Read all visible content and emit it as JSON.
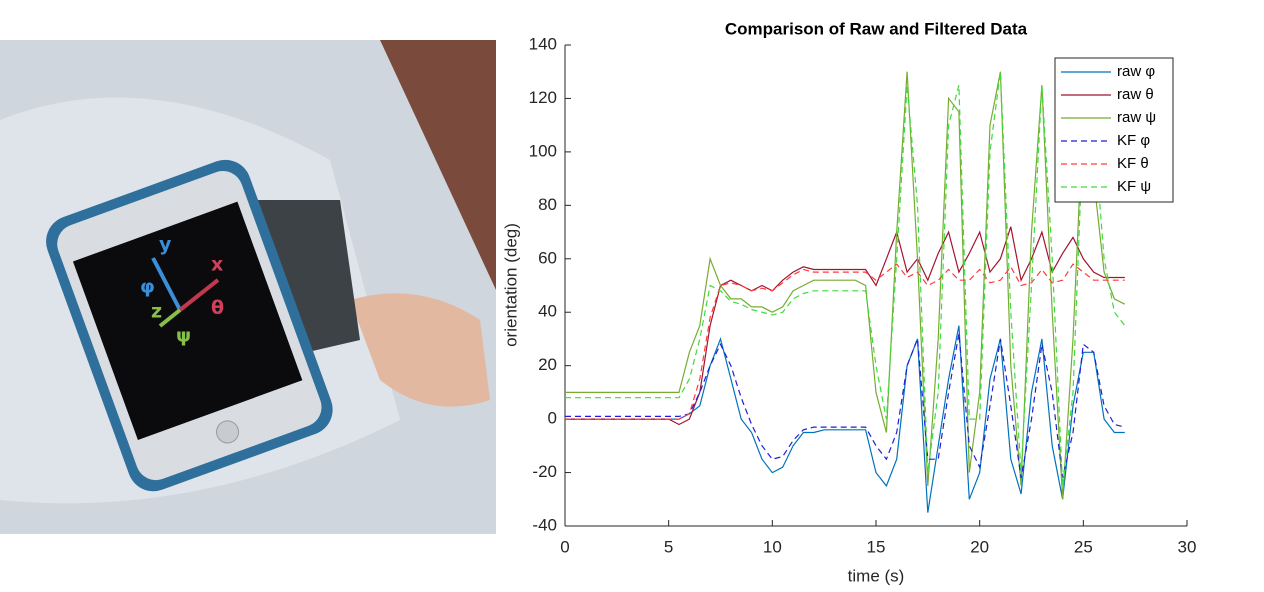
{
  "photo": {
    "labels": [
      "y",
      "φ",
      "x",
      "θ",
      "z",
      "ψ"
    ]
  },
  "chart_data": {
    "type": "line",
    "title": "Comparison of Raw and Filtered Data",
    "x_label": "time (s)",
    "y_label": "orientation (deg)",
    "xlim": [
      0,
      30
    ],
    "xticks": [
      0,
      5,
      10,
      15,
      20,
      25,
      30
    ],
    "ylim": [
      -40,
      140
    ],
    "yticks": [
      -40,
      -20,
      0,
      20,
      40,
      60,
      80,
      100,
      120,
      140
    ],
    "legend": "upper right",
    "x": [
      0,
      0.5,
      1,
      1.5,
      2,
      2.5,
      3,
      3.5,
      4,
      4.5,
      5,
      5.5,
      6,
      6.5,
      7,
      7.5,
      8,
      8.5,
      9,
      9.5,
      10,
      10.5,
      11,
      11.5,
      12,
      12.5,
      13,
      13.5,
      14,
      14.5,
      15,
      15.5,
      16,
      16.5,
      17,
      17.5,
      18,
      18.5,
      19,
      19.5,
      20,
      20.5,
      21,
      21.5,
      22,
      22.5,
      23,
      23.5,
      24,
      24.5,
      25,
      25.5,
      26,
      26.5,
      27
    ],
    "series": [
      {
        "name": "raw φ",
        "color": "#0072bd",
        "line_style": "solid",
        "values": [
          0,
          0,
          0,
          0,
          0,
          0,
          0,
          0,
          0,
          0,
          0,
          0,
          2,
          5,
          20,
          30,
          15,
          0,
          -5,
          -15,
          -20,
          -18,
          -10,
          -5,
          -5,
          -4,
          -4,
          -4,
          -4,
          -4,
          -20,
          -25,
          -15,
          20,
          30,
          -35,
          -10,
          15,
          35,
          -30,
          -20,
          15,
          30,
          -15,
          -28,
          10,
          30,
          -10,
          -30,
          5,
          25,
          25,
          0,
          -5,
          -5
        ]
      },
      {
        "name": "raw θ",
        "color": "#a2142f",
        "line_style": "solid",
        "values": [
          0,
          0,
          0,
          0,
          0,
          0,
          0,
          0,
          0,
          0,
          0,
          -2,
          0,
          10,
          35,
          50,
          52,
          50,
          48,
          50,
          48,
          52,
          55,
          57,
          56,
          56,
          56,
          56,
          56,
          56,
          50,
          60,
          70,
          55,
          60,
          52,
          62,
          70,
          55,
          62,
          70,
          55,
          60,
          72,
          52,
          60,
          70,
          55,
          62,
          68,
          60,
          55,
          53,
          53,
          53
        ]
      },
      {
        "name": "raw ψ",
        "color": "#77ac30",
        "line_style": "solid",
        "values": [
          10,
          10,
          10,
          10,
          10,
          10,
          10,
          10,
          10,
          10,
          10,
          10,
          25,
          35,
          60,
          50,
          45,
          45,
          42,
          42,
          40,
          42,
          48,
          50,
          52,
          52,
          52,
          52,
          52,
          50,
          10,
          -5,
          70,
          130,
          60,
          -25,
          30,
          120,
          115,
          -20,
          10,
          110,
          130,
          20,
          -25,
          70,
          125,
          40,
          -30,
          30,
          115,
          90,
          55,
          45,
          43
        ]
      },
      {
        "name": "KF φ",
        "color": "#1f1fd6",
        "line_style": "dashed",
        "values": [
          1,
          1,
          1,
          1,
          1,
          1,
          1,
          1,
          1,
          1,
          1,
          1,
          2,
          10,
          20,
          28,
          20,
          8,
          -2,
          -10,
          -15,
          -14,
          -8,
          -4,
          -3,
          -3,
          -3,
          -3,
          -3,
          -3,
          -10,
          -15,
          -5,
          20,
          30,
          -15,
          -15,
          10,
          32,
          -10,
          -18,
          5,
          30,
          5,
          -22,
          0,
          28,
          10,
          -22,
          -5,
          28,
          25,
          5,
          -2,
          -3
        ]
      },
      {
        "name": "KF θ",
        "color": "#ff3b3b",
        "line_style": "dashed",
        "values": [
          0,
          0,
          0,
          0,
          0,
          0,
          0,
          0,
          0,
          0,
          0,
          0,
          2,
          15,
          38,
          50,
          51,
          50,
          48,
          49,
          48,
          51,
          54,
          56,
          55,
          55,
          55,
          55,
          55,
          55,
          52,
          55,
          58,
          53,
          55,
          50,
          52,
          56,
          52,
          52,
          56,
          51,
          52,
          57,
          50,
          51,
          56,
          51,
          52,
          58,
          55,
          52,
          52,
          52,
          52
        ]
      },
      {
        "name": "KF ψ",
        "color": "#3ddc3d",
        "line_style": "dashed",
        "values": [
          8,
          8,
          8,
          8,
          8,
          8,
          8,
          8,
          8,
          8,
          8,
          8,
          15,
          30,
          50,
          48,
          44,
          43,
          41,
          40,
          39,
          40,
          45,
          47,
          48,
          48,
          48,
          48,
          48,
          48,
          20,
          0,
          60,
          125,
          80,
          -20,
          10,
          110,
          125,
          0,
          0,
          100,
          130,
          40,
          -20,
          50,
          125,
          60,
          -25,
          10,
          110,
          110,
          60,
          40,
          35
        ]
      }
    ]
  }
}
